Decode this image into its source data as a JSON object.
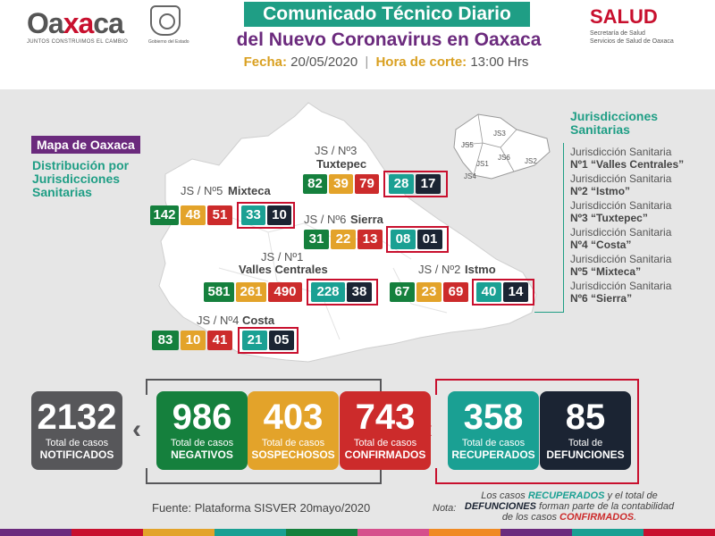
{
  "header": {
    "logo_text_1": "Oa",
    "logo_text_x": "xa",
    "logo_text_2": "ca",
    "logo_tagline": "JUNTOS CONSTRUIMOS EL CAMBIO",
    "seal_caption": "Gobierno del Estado",
    "title_line1": "Comunicado Técnico Diario",
    "title_line2": "del Nuevo Coronavirus en Oaxaca",
    "fecha_label": "Fecha:",
    "fecha_value": "20/05/2020",
    "hora_label": "Hora de corte:",
    "hora_value": "13:00 Hrs",
    "salud_title": "SALUD",
    "salud_sub1": "Secretaría de Salud",
    "salud_sub2": "Servicios de Salud de Oaxaca"
  },
  "map": {
    "tag": "Mapa de Oaxaca",
    "subtitle": "Distribución por Jurisdicciones Sanitarias",
    "jurisdicciones": [
      {
        "label": "JS / Nº3",
        "name": "Tuxtepec",
        "negativos": "82",
        "sospechosos": "39",
        "confirmados": "79",
        "recuperados": "28",
        "defunciones": "17"
      },
      {
        "label": "JS / Nº5",
        "name": "Mixteca",
        "negativos": "142",
        "sospechosos": "48",
        "confirmados": "51",
        "recuperados": "33",
        "defunciones": "10"
      },
      {
        "label": "JS / Nº6",
        "name": "Sierra",
        "negativos": "31",
        "sospechosos": "22",
        "confirmados": "13",
        "recuperados": "08",
        "defunciones": "01"
      },
      {
        "label": "JS / Nº1",
        "name": "Valles Centrales",
        "negativos": "581",
        "sospechosos": "261",
        "confirmados": "490",
        "recuperados": "228",
        "defunciones": "38"
      },
      {
        "label": "JS / Nº2",
        "name": "Istmo",
        "negativos": "67",
        "sospechosos": "23",
        "confirmados": "69",
        "recuperados": "40",
        "defunciones": "14"
      },
      {
        "label": "JS / Nº4",
        "name": "Costa",
        "negativos": "83",
        "sospechosos": "10",
        "confirmados": "41",
        "recuperados": "21",
        "defunciones": "05"
      }
    ],
    "mini_labels": [
      "JS5",
      "JS3",
      "JS1",
      "JS6",
      "JS2",
      "JS4"
    ]
  },
  "legend": {
    "title": "Jurisdicciones Sanitarias",
    "items": [
      {
        "line1": "Jurisdicción Sanitaria",
        "line2": "Nº1 “Valles Centrales”"
      },
      {
        "line1": "Jurisdicción Sanitaria",
        "line2": "Nº2 “Istmo”"
      },
      {
        "line1": "Jurisdicción Sanitaria",
        "line2": "Nº3 “Tuxtepec”"
      },
      {
        "line1": "Jurisdicción Sanitaria",
        "line2": "Nº4 “Costa”"
      },
      {
        "line1": "Jurisdicción Sanitaria",
        "line2": "Nº5 “Mixteca”"
      },
      {
        "line1": "Jurisdicción Sanitaria",
        "line2": "Nº6 “Sierra”"
      }
    ]
  },
  "totals": [
    {
      "value": "2132",
      "line1": "Total de casos",
      "line2": "NOTIFICADOS"
    },
    {
      "value": "986",
      "line1": "Total de casos",
      "line2": "NEGATIVOS"
    },
    {
      "value": "403",
      "line1": "Total de casos",
      "line2": "SOSPECHOSOS"
    },
    {
      "value": "743",
      "line1": "Total de casos",
      "line2": "CONFIRMADOS"
    },
    {
      "value": "358",
      "line1": "Total de casos",
      "line2": "RECUPERADOS"
    },
    {
      "value": "85",
      "line1": "Total de",
      "line2": "DEFUNCIONES"
    }
  ],
  "footer": {
    "fuente": "Fuente: Plataforma SISVER 20mayo/2020",
    "nota_label": "Nota:",
    "nota_p1": "Los casos ",
    "nota_recuperados": "RECUPERADOS",
    "nota_p2": " y el total de ",
    "nota_defunciones": "DEFUNCIONES",
    "nota_p3": " forman parte de la contabilidad de los casos ",
    "nota_confirmados": "CONFIRMADOS",
    "nota_p4": "."
  },
  "colors": {
    "negativos": "#15803d",
    "sospechosos": "#e3a32a",
    "confirmados": "#cc2b2b",
    "recuperados": "#1aa093",
    "defunciones": "#1b2433",
    "notificados": "#57575a",
    "accent_purple": "#6b2a7d",
    "accent_teal": "#1f9e85"
  }
}
